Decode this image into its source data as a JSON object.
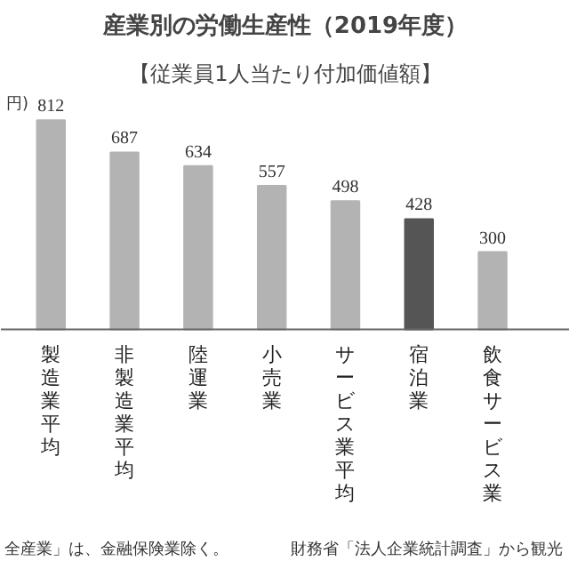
{
  "chart_data": {
    "type": "bar",
    "title": "産業別の労働生産性（2019年度）",
    "subtitle": "【従業員1人当たり付加価値額】",
    "categories": [
      "製造業平均",
      "非製造業平均",
      "陸運業",
      "小売業",
      "サービス業平均",
      "宿泊業",
      "飲食サービス業"
    ],
    "values": [
      812,
      687,
      634,
      557,
      498,
      428,
      300
    ],
    "colors": [
      "#b3b3b3",
      "#b3b3b3",
      "#b3b3b3",
      "#b3b3b3",
      "#b3b3b3",
      "#555555",
      "#b3b3b3"
    ],
    "data_labels": true,
    "grid": false,
    "tick_labels": "x",
    "annotations": [
      "円)",
      "全産業」は、金融保険業除く。",
      "財務省「法人企業統計調査」から観光"
    ]
  }
}
